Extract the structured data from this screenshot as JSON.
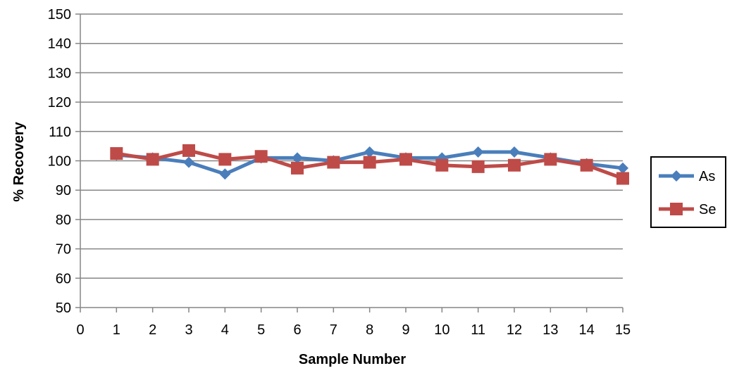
{
  "chart_data": {
    "type": "line",
    "title": "",
    "xlabel": "Sample Number",
    "ylabel": "% Recovery",
    "xlim": [
      0,
      15
    ],
    "ylim": [
      50,
      150
    ],
    "x_ticks": [
      0,
      1,
      2,
      3,
      4,
      5,
      6,
      7,
      8,
      9,
      10,
      11,
      12,
      13,
      14,
      15
    ],
    "y_ticks": [
      50,
      60,
      70,
      80,
      90,
      100,
      110,
      120,
      130,
      140,
      150
    ],
    "grid": "horizontal",
    "legend_position": "right",
    "x": [
      1,
      2,
      3,
      4,
      5,
      6,
      7,
      8,
      9,
      10,
      11,
      12,
      13,
      14,
      15
    ],
    "series": [
      {
        "name": "As",
        "marker": "diamond",
        "color": "#4A7EBB",
        "values": [
          102,
          101,
          99.5,
          95.5,
          101,
          101,
          100,
          103,
          101,
          101,
          103,
          103,
          101,
          99,
          97.5
        ]
      },
      {
        "name": "Se",
        "marker": "square",
        "color": "#BE4B48",
        "values": [
          102.5,
          100.5,
          103.5,
          100.5,
          101.5,
          97.5,
          99.5,
          99.5,
          100.5,
          98.5,
          98,
          98.5,
          100.5,
          98.5,
          94
        ]
      }
    ]
  }
}
